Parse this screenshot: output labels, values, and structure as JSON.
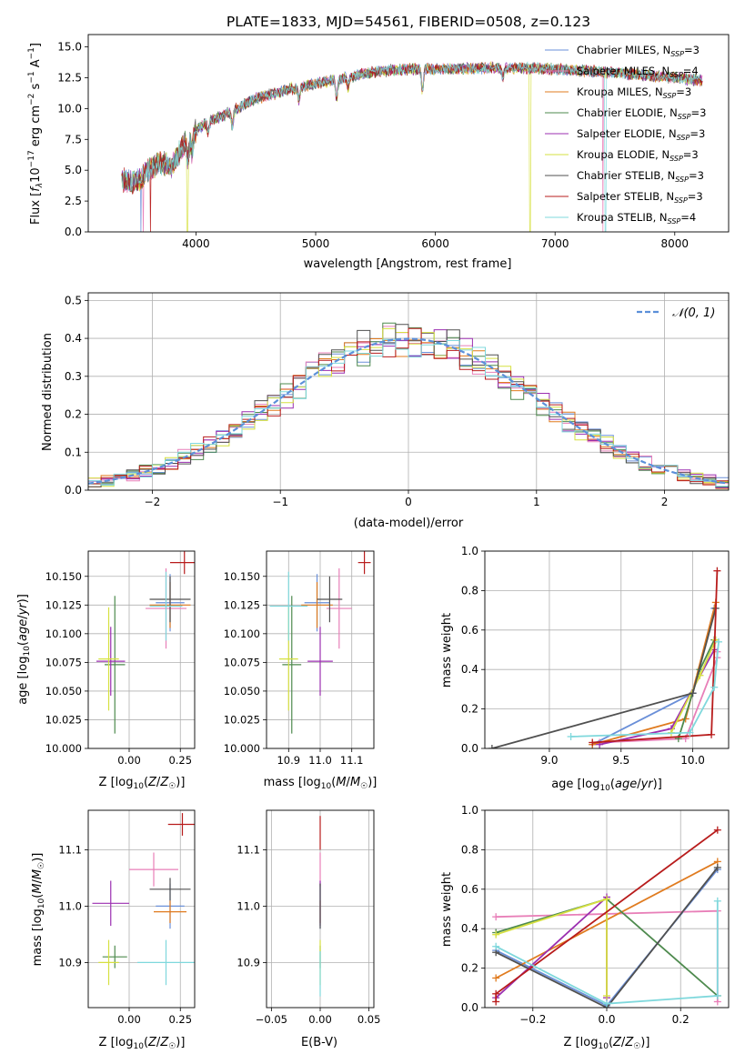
{
  "title": "PLATE=1833, MJD=54561, FIBERID=0508, z=0.123",
  "colors": {
    "chabrier_miles": "#6a8fd8",
    "salpeter_miles": "#e87fb8",
    "kroupa_miles": "#e07b1f",
    "chabrier_elodie": "#4e8a4e",
    "salpeter_elodie": "#9b2fb0",
    "kroupa_elodie": "#d6e040",
    "chabrier_stelib": "#505050",
    "salpeter_stelib": "#b81c1c",
    "kroupa_stelib": "#7fd8dc",
    "normal": "#5b8fd9",
    "grid": "#b0b0b0"
  },
  "chart_data": [
    {
      "id": "spectrum",
      "type": "line",
      "title": "PLATE=1833, MJD=54561, FIBERID=0508, z=0.123",
      "xlabel": "wavelength [Angstrom, rest frame]",
      "ylabel": "Flux [f_λ 10^-17 erg cm^-2 s^-1 A^-1]",
      "xlim": [
        3100,
        8450
      ],
      "ylim": [
        0,
        16
      ],
      "xticks": [
        "4000",
        "5000",
        "6000",
        "7000",
        "8000"
      ],
      "yticks": [
        "0.0",
        "2.5",
        "5.0",
        "7.5",
        "10.0",
        "12.5",
        "15.0"
      ],
      "grid": false,
      "legend_position": "upper right",
      "continuum": {
        "x": [
          3400,
          3500,
          3600,
          3700,
          3800,
          3900,
          4000,
          4100,
          4200,
          4300,
          4500,
          4800,
          5000,
          5200,
          5500,
          5800,
          6000,
          6500,
          7000,
          7500,
          8000,
          8200
        ],
        "y": [
          4.2,
          4.0,
          5.0,
          5.6,
          5.3,
          7.2,
          8.2,
          9.0,
          9.3,
          9.8,
          10.8,
          11.6,
          12.0,
          12.4,
          13.0,
          13.2,
          13.2,
          13.3,
          13.2,
          12.9,
          12.5,
          12.3
        ]
      },
      "series": [
        {
          "name": "Chabrier MILES, N_SSP=3",
          "label_main": "Chabrier MILES, N",
          "label_sub": "SSP",
          "label_tail": "=3"
        },
        {
          "name": "Salpeter MILES, N_SSP=4",
          "label_main": "Salpeter MILES, N",
          "label_sub": "SSP",
          "label_tail": "=4"
        },
        {
          "name": "Kroupa MILES, N_SSP=3",
          "label_main": "Kroupa MILES, N",
          "label_sub": "SSP",
          "label_tail": "=3"
        },
        {
          "name": "Chabrier ELODIE, N_SSP=3",
          "label_main": "Chabrier ELODIE, N",
          "label_sub": "SSP",
          "label_tail": "=3"
        },
        {
          "name": "Salpeter ELODIE, N_SSP=3",
          "label_main": "Salpeter ELODIE, N",
          "label_sub": "SSP",
          "label_tail": "=3"
        },
        {
          "name": "Kroupa ELODIE, N_SSP=3",
          "label_main": "Kroupa ELODIE, N",
          "label_sub": "SSP",
          "label_tail": "=3"
        },
        {
          "name": "Chabrier STELIB, N_SSP=3",
          "label_main": "Chabrier STELIB, N",
          "label_sub": "SSP",
          "label_tail": "=3"
        },
        {
          "name": "Salpeter STELIB, N_SSP=3",
          "label_main": "Salpeter STELIB, N",
          "label_sub": "SSP",
          "label_tail": "=3"
        },
        {
          "name": "Kroupa STELIB, N_SSP=4",
          "label_main": "Kroupa STELIB, N",
          "label_sub": "SSP",
          "label_tail": "=4"
        }
      ]
    },
    {
      "id": "residuals",
      "type": "line",
      "xlabel": "(data-model)/error",
      "ylabel": "Normed distribution",
      "xlim": [
        -2.5,
        2.5
      ],
      "ylim": [
        0,
        0.52
      ],
      "xticks": [
        "−2",
        "−1",
        "0",
        "1",
        "2"
      ],
      "yticks": [
        "0.0",
        "0.1",
        "0.2",
        "0.3",
        "0.4",
        "0.5"
      ],
      "grid": true,
      "legend_position": "upper right",
      "bins": {
        "start": -2.5,
        "width": 0.1,
        "count": 50
      },
      "reference": {
        "name": "N(0,1)",
        "label": "𝒩(0, 1)",
        "mean": 0,
        "std": 1
      }
    },
    {
      "id": "age_vs_Z",
      "type": "scatter",
      "xlabel": "Z [log10(Z/Z☉)]",
      "ylabel": "age [log10(age/yr)]",
      "xlim": [
        -0.2,
        0.32
      ],
      "ylim": [
        10.0,
        10.172
      ],
      "xticks": [
        "0.00",
        "0.25"
      ],
      "yticks": [
        "10.000",
        "10.025",
        "10.050",
        "10.075",
        "10.100",
        "10.125",
        "10.150"
      ],
      "grid": true,
      "points": [
        {
          "x": 0.2,
          "y": 10.127,
          "xerr": 0.07,
          "yerr": 0.025
        },
        {
          "x": 0.18,
          "y": 10.122,
          "xerr": 0.1,
          "yerr": 0.035
        },
        {
          "x": 0.2,
          "y": 10.125,
          "xerr": 0.1,
          "yerr": 0.02
        },
        {
          "x": -0.07,
          "y": 10.073,
          "xerr": 0.05,
          "yerr": 0.06
        },
        {
          "x": -0.09,
          "y": 10.076,
          "xerr": 0.07,
          "yerr": 0.03
        },
        {
          "x": -0.1,
          "y": 10.078,
          "xerr": 0.05,
          "yerr": 0.045
        },
        {
          "x": 0.2,
          "y": 10.13,
          "xerr": 0.1,
          "yerr": 0.02
        },
        {
          "x": 0.27,
          "y": 10.162,
          "xerr": 0.07,
          "yerr": 0.01
        },
        {
          "x": 0.18,
          "y": 10.124,
          "xerr": 0.08,
          "yerr": 0.03
        }
      ]
    },
    {
      "id": "age_vs_mass",
      "type": "scatter",
      "xlabel": "mass [log10(M/M☉)]",
      "ylabel": "",
      "xlim": [
        10.83,
        11.17
      ],
      "ylim": [
        10.0,
        10.172
      ],
      "xticks": [
        "10.9",
        "11.0",
        "11.1"
      ],
      "yticks": [
        "10.000",
        "10.025",
        "10.050",
        "10.075",
        "10.100",
        "10.125",
        "10.150"
      ],
      "grid": true,
      "points": [
        {
          "x": 10.99,
          "y": 10.127,
          "xerr": 0.04,
          "yerr": 0.025
        },
        {
          "x": 11.06,
          "y": 10.122,
          "xerr": 0.04,
          "yerr": 0.035
        },
        {
          "x": 10.99,
          "y": 10.125,
          "xerr": 0.05,
          "yerr": 0.02
        },
        {
          "x": 10.91,
          "y": 10.073,
          "xerr": 0.03,
          "yerr": 0.06
        },
        {
          "x": 11.0,
          "y": 10.076,
          "xerr": 0.04,
          "yerr": 0.03
        },
        {
          "x": 10.9,
          "y": 10.078,
          "xerr": 0.03,
          "yerr": 0.045
        },
        {
          "x": 11.03,
          "y": 10.13,
          "xerr": 0.04,
          "yerr": 0.02
        },
        {
          "x": 11.14,
          "y": 10.162,
          "xerr": 0.02,
          "yerr": 0.01
        },
        {
          "x": 10.9,
          "y": 10.124,
          "xerr": 0.06,
          "yerr": 0.03
        }
      ]
    },
    {
      "id": "weight_vs_age",
      "type": "line",
      "xlabel": "age [log10(age/yr)]",
      "ylabel": "mass weight",
      "xlim": [
        8.55,
        10.25
      ],
      "ylim": [
        0.0,
        1.0
      ],
      "xticks": [
        "9.0",
        "9.5",
        "10.0"
      ],
      "yticks": [
        "0.0",
        "0.2",
        "0.4",
        "0.6",
        "0.8",
        "1.0"
      ],
      "grid": true,
      "series": [
        {
          "x": [
            9.3,
            10.0,
            10.15
          ],
          "y": [
            0.02,
            0.28,
            0.71
          ]
        },
        {
          "x": [
            9.35,
            9.95,
            10.17,
            10.17
          ],
          "y": [
            0.03,
            0.05,
            0.46,
            0.49
          ]
        },
        {
          "x": [
            9.3,
            9.95,
            10.16
          ],
          "y": [
            0.02,
            0.15,
            0.74
          ]
        },
        {
          "x": [
            9.9,
            10.05,
            10.15
          ],
          "y": [
            0.05,
            0.4,
            0.55
          ]
        },
        {
          "x": [
            9.35,
            9.85,
            10.15
          ],
          "y": [
            0.02,
            0.1,
            0.5
          ]
        },
        {
          "x": [
            9.85,
            10.05,
            10.16
          ],
          "y": [
            0.08,
            0.37,
            0.55
          ]
        },
        {
          "x": [
            8.6,
            10.0,
            10.16
          ],
          "y": [
            0.0,
            0.28,
            0.71
          ]
        },
        {
          "x": [
            9.3,
            10.13,
            10.17
          ],
          "y": [
            0.03,
            0.07,
            0.9
          ]
        },
        {
          "x": [
            9.15,
            9.98,
            10.15,
            10.18
          ],
          "y": [
            0.06,
            0.08,
            0.31,
            0.54
          ]
        }
      ]
    },
    {
      "id": "mass_vs_Z",
      "type": "scatter",
      "xlabel": "Z [log10(Z/Z☉)]",
      "ylabel": "mass [log10(M/M☉)]",
      "xlim": [
        -0.2,
        0.32
      ],
      "ylim": [
        10.82,
        11.17
      ],
      "xticks": [
        "0.00",
        "0.25"
      ],
      "yticks": [
        "10.9",
        "11.0",
        "11.1"
      ],
      "grid": true,
      "points": [
        {
          "x": 0.2,
          "y": 11.0,
          "xerr": 0.07,
          "yerr": 0.04
        },
        {
          "x": 0.12,
          "y": 11.065,
          "xerr": 0.12,
          "yerr": 0.03
        },
        {
          "x": 0.2,
          "y": 10.99,
          "xerr": 0.08,
          "yerr": 0.02
        },
        {
          "x": -0.07,
          "y": 10.91,
          "xerr": 0.06,
          "yerr": 0.02
        },
        {
          "x": -0.09,
          "y": 11.005,
          "xerr": 0.09,
          "yerr": 0.04
        },
        {
          "x": -0.1,
          "y": 10.9,
          "xerr": 0.05,
          "yerr": 0.04
        },
        {
          "x": 0.2,
          "y": 11.03,
          "xerr": 0.1,
          "yerr": 0.02
        },
        {
          "x": 0.26,
          "y": 11.145,
          "xerr": 0.07,
          "yerr": 0.02
        },
        {
          "x": 0.18,
          "y": 10.9,
          "xerr": 0.14,
          "yerr": 0.04
        }
      ]
    },
    {
      "id": "mass_vs_ebv",
      "type": "scatter",
      "xlabel": "E(B-V)",
      "ylabel": "",
      "xlim": [
        -0.055,
        0.055
      ],
      "ylim": [
        10.82,
        11.17
      ],
      "xticks": [
        "−0.05",
        "0.00",
        "0.05"
      ],
      "yticks": [
        "10.9",
        "11.0",
        "11.1"
      ],
      "grid": true,
      "points": [
        {
          "x": 0.0,
          "y": 11.0,
          "xerr": 0.0,
          "yerr": 0.04
        },
        {
          "x": 0.0,
          "y": 11.065,
          "xerr": 0.0,
          "yerr": 0.03
        },
        {
          "x": 0.0,
          "y": 10.99,
          "xerr": 0.0,
          "yerr": 0.02
        },
        {
          "x": 0.0,
          "y": 10.91,
          "xerr": 0.0,
          "yerr": 0.02
        },
        {
          "x": 0.0,
          "y": 11.005,
          "xerr": 0.0,
          "yerr": 0.04
        },
        {
          "x": 0.0,
          "y": 10.9,
          "xerr": 0.0,
          "yerr": 0.04
        },
        {
          "x": 0.0,
          "y": 11.0,
          "xerr": 0.0,
          "yerr": 0.04
        },
        {
          "x": 0.0,
          "y": 11.13,
          "xerr": 0.0,
          "yerr": 0.03
        },
        {
          "x": 0.0,
          "y": 10.88,
          "xerr": 0.0,
          "yerr": 0.04
        }
      ]
    },
    {
      "id": "weight_vs_Z",
      "type": "line",
      "xlabel": "Z [log10(Z/Z☉)]",
      "ylabel": "mass weight",
      "xlim": [
        -0.33,
        0.33
      ],
      "ylim": [
        0.0,
        1.0
      ],
      "xticks": [
        "−0.2",
        "0.0",
        "0.2"
      ],
      "yticks": [
        "0.0",
        "0.2",
        "0.4",
        "0.6",
        "0.8",
        "1.0"
      ],
      "grid": true,
      "series": [
        {
          "x": [
            -0.3,
            0.0,
            0.3
          ],
          "y": [
            0.29,
            0.01,
            0.7
          ]
        },
        {
          "x": [
            -0.3,
            0.3,
            0.3
          ],
          "y": [
            0.46,
            0.49,
            0.03
          ]
        },
        {
          "x": [
            -0.3,
            0.3
          ],
          "y": [
            0.15,
            0.74
          ]
        },
        {
          "x": [
            -0.3,
            0.0,
            0.3
          ],
          "y": [
            0.38,
            0.55,
            0.06
          ]
        },
        {
          "x": [
            -0.3,
            0.0,
            0.0
          ],
          "y": [
            0.05,
            0.56,
            0.05
          ]
        },
        {
          "x": [
            -0.3,
            0.0,
            0.0
          ],
          "y": [
            0.37,
            0.55,
            0.06
          ]
        },
        {
          "x": [
            -0.3,
            0.0,
            0.3
          ],
          "y": [
            0.28,
            0.0,
            0.71
          ]
        },
        {
          "x": [
            -0.3,
            -0.3,
            0.3
          ],
          "y": [
            0.03,
            0.07,
            0.9
          ]
        },
        {
          "x": [
            -0.3,
            0.0,
            0.3,
            0.3
          ],
          "y": [
            0.31,
            0.02,
            0.06,
            0.54
          ]
        }
      ]
    }
  ]
}
